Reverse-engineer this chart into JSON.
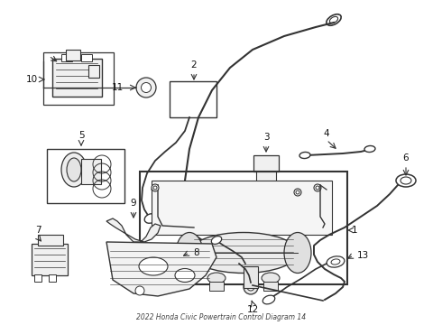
{
  "title": "2022 Honda Civic Powertrain Control Diagram 14",
  "bg_color": "#ffffff",
  "line_color": "#333333",
  "label_color": "#111111",
  "fig_width": 4.9,
  "fig_height": 3.6,
  "dpi": 100
}
